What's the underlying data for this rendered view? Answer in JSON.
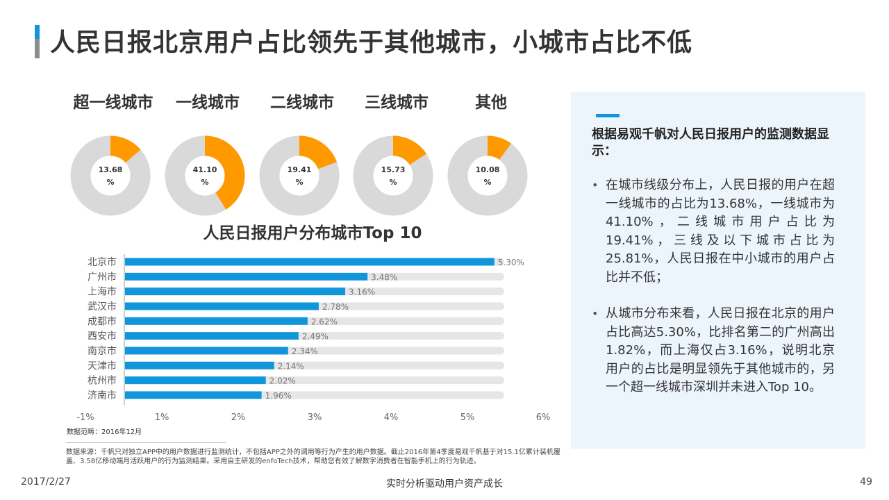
{
  "header": {
    "title": "人民日报北京用户占比领先于其他城市，小城市占比不低"
  },
  "colors": {
    "accent_blue": "#1296db",
    "orange": "#ff9900",
    "gray_ring": "#d9d9d9",
    "bar_track": "#e6e6e6",
    "panel_bg": "#edf5fc"
  },
  "chart_data": [
    {
      "type": "pie",
      "categories": [
        "超一线城市",
        "一线城市",
        "二线城市",
        "三线城市",
        "其他"
      ],
      "values": [
        13.68,
        41.1,
        19.41,
        15.73,
        10.08
      ],
      "value_labels": [
        "13.68",
        "41.10",
        "19.41",
        "15.73",
        "10.08"
      ],
      "unit": "%",
      "title": ""
    },
    {
      "type": "bar",
      "orientation": "horizontal",
      "title": "人民日报用户分布城市Top 10",
      "categories": [
        "北京市",
        "广州市",
        "上海市",
        "武汉市",
        "成都市",
        "西安市",
        "南京市",
        "天津市",
        "杭州市",
        "济南市"
      ],
      "values": [
        5.3,
        3.48,
        3.16,
        2.78,
        2.62,
        2.49,
        2.34,
        2.14,
        2.02,
        1.96
      ],
      "data_labels": [
        "5.30%",
        "3.48%",
        "3.16%",
        "2.78%",
        "2.62%",
        "2.49%",
        "2.34%",
        "2.14%",
        "2.02%",
        "1.96%"
      ],
      "xlim": [
        -1,
        6
      ],
      "xticks": [
        -1,
        1,
        2,
        3,
        4,
        5,
        6
      ],
      "xtick_labels": [
        "-1%",
        "1%",
        "2%",
        "3%",
        "4%",
        "5%",
        "6%"
      ],
      "background_track": true,
      "grid": false
    }
  ],
  "notes": {
    "scope": "数据范畴：2016年12月",
    "source": "数据来源：千帆只对独立APP中的用户数据进行监测统计，不包括APP之外的调用等行为产生的用户数据。截止2016年第4季度易观千帆基于对15.1亿累计装机覆盖、3.58亿移动端月活跃用户的行为监测结果。采用自主研发的enfoTech技术，帮助您有效了解数字消费者在智能手机上的行为轨迹。"
  },
  "side": {
    "heading": "根据易观千帆对人民日报用户的监测数据显示：",
    "bullet_symbol": "•",
    "bullets": [
      "在城市线级分布上，人民日报的用户在超一线城市的占比为13.68%，一线城市为41.10%，二线城市用户占比为19.41%，三线及以下城市占比为25.81%，人民日报在中小城市的用户占比并不低；",
      "从城市分布来看，人民日报在北京的用户占比高达5.30%，比排名第二的广州高出1.82%，而上海仅占3.16%，说明北京用户的占比是明显领先于其他城市的，另一个超一线城市深圳并未进入Top 10。"
    ]
  },
  "footer": {
    "date": "2017/2/27",
    "center": "实时分析驱动用户资产成长",
    "page": "49"
  }
}
